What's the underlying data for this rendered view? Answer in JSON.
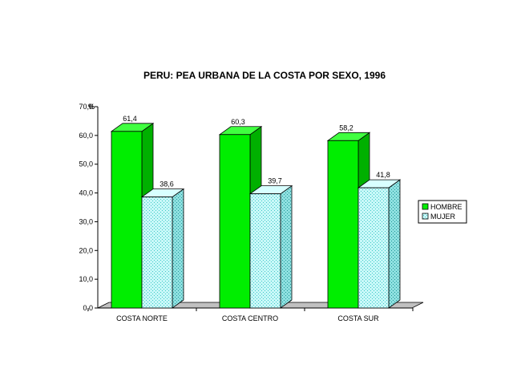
{
  "chart_data": {
    "type": "bar",
    "title": "PERU: PEA URBANA DE LA COSTA POR SEXO, 1996",
    "unit": "%",
    "categories": [
      "COSTA NORTE",
      "COSTA CENTRO",
      "COSTA SUR"
    ],
    "series": [
      {
        "name": "HOMBRE",
        "values": [
          61.4,
          60.3,
          58.2
        ],
        "labels": [
          "61,4",
          "60,3",
          "58,2"
        ],
        "color": "#00ee00"
      },
      {
        "name": "MUJER",
        "values": [
          38.6,
          39.7,
          41.8
        ],
        "labels": [
          "38,6",
          "39,7",
          "41,8"
        ],
        "color": "#a8f0f0"
      }
    ],
    "ylim": [
      0,
      70
    ],
    "yticks": [
      0,
      10,
      20,
      30,
      40,
      50,
      60,
      70
    ],
    "ytick_labels": [
      "0,0",
      "10,0",
      "20,0",
      "30,0",
      "40,0",
      "50,0",
      "60,0",
      "70,0"
    ],
    "grid": false,
    "legend_position": "right",
    "style": "3d"
  }
}
